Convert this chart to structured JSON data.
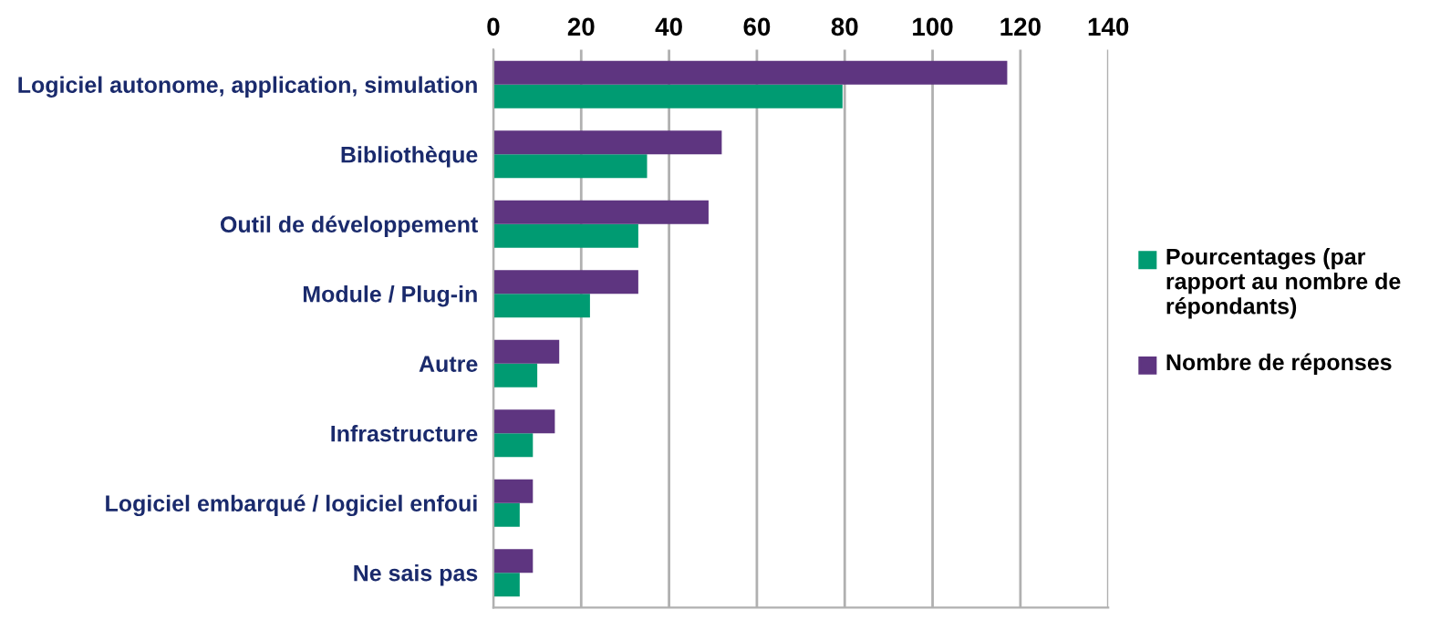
{
  "chart_data": {
    "type": "bar",
    "orientation": "horizontal",
    "categories": [
      "Logiciel autonome, application, simulation",
      "Bibliothèque",
      "Outil de développement",
      "Module / Plug-in",
      "Autre",
      "Infrastructure",
      "Logiciel embarqué / logiciel enfoui",
      "Ne sais pas"
    ],
    "series": [
      {
        "name": "Pourcentages (par rapport au nombre de répondants)",
        "color": "#009b72",
        "values": [
          79.5,
          35,
          33,
          22,
          10,
          9,
          6,
          6
        ]
      },
      {
        "name": "Nombre de réponses",
        "color": "#5e3580",
        "values": [
          117,
          52,
          49,
          33,
          15,
          14,
          9,
          9
        ]
      }
    ],
    "xlim": [
      0,
      140
    ],
    "xticks": [
      0,
      20,
      40,
      60,
      80,
      100,
      120,
      140
    ],
    "grid": "x",
    "legend": "right"
  }
}
